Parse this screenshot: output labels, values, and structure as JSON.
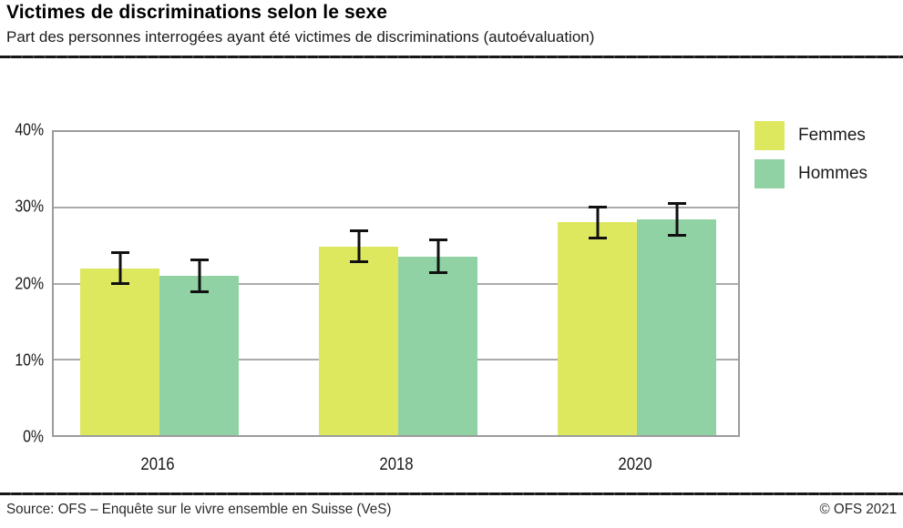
{
  "header": {
    "title": "Victimes de discriminations selon le sexe",
    "subtitle": "Part des personnes interrogées ayant été victimes de discriminations (autoévaluation)"
  },
  "footer": {
    "source": "Source: OFS – Enquête sur le vivre ensemble en Suisse (VeS)",
    "copyright": "© OFS 2021"
  },
  "colors": {
    "femmes": "#dee85f",
    "hommes": "#91d2a4",
    "gridline": "#ababab",
    "plot_border": "#9c9c9c",
    "error_bar": "#111111",
    "divider": "#161616"
  },
  "chart_data": {
    "type": "bar",
    "title": "Victimes de discriminations selon le sexe",
    "subtitle": "Part des personnes interrogées ayant été victimes de discriminations (autoévaluation)",
    "categories": [
      "2016",
      "2018",
      "2020"
    ],
    "series": [
      {
        "name": "Femmes",
        "color": "#dee85f",
        "values": [
          22.0,
          24.9,
          28.1
        ],
        "ci_low": [
          19.8,
          22.7,
          25.8
        ],
        "ci_high": [
          24.3,
          27.1,
          30.3
        ]
      },
      {
        "name": "Hommes",
        "color": "#91d2a4",
        "values": [
          21.0,
          23.6,
          28.5
        ],
        "ci_low": [
          18.8,
          21.3,
          26.2
        ],
        "ci_high": [
          23.3,
          26.0,
          30.7
        ]
      }
    ],
    "xlabel": "",
    "ylabel": "",
    "ylim": [
      0,
      40
    ],
    "yticks": [
      {
        "label": "0%",
        "value": 0
      },
      {
        "label": "10%",
        "value": 10
      },
      {
        "label": "20%",
        "value": 20
      },
      {
        "label": "30%",
        "value": 30
      },
      {
        "label": "40%",
        "value": 40
      }
    ],
    "grid": true,
    "grid_values": [
      10,
      20,
      30
    ],
    "error_bars": true,
    "legend_position": "top-right"
  }
}
